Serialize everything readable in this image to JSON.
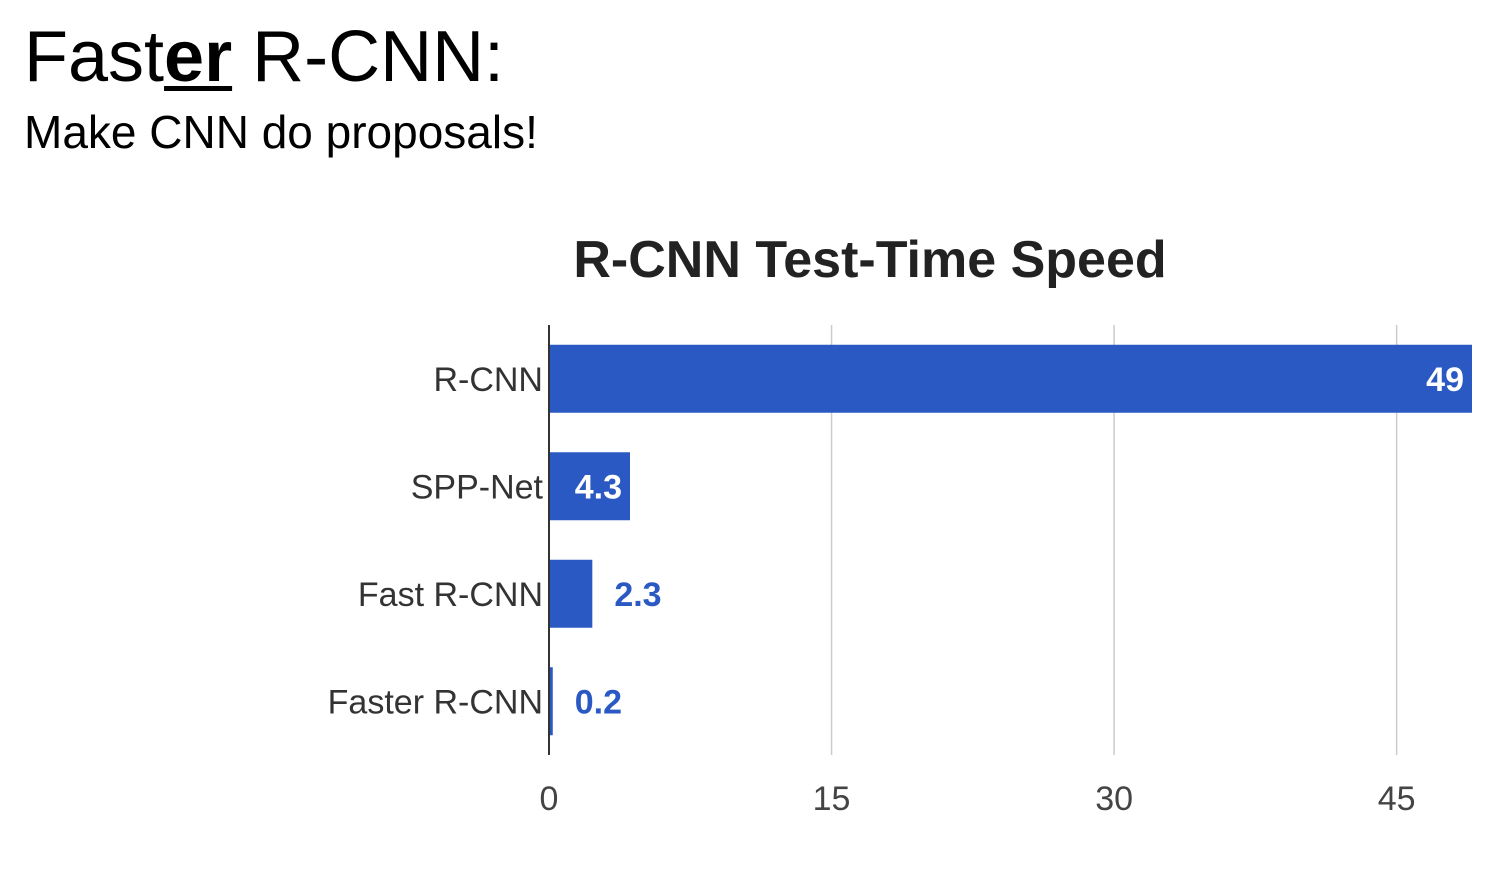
{
  "slide": {
    "title_prefix": "Fast",
    "title_emphasis": "er",
    "title_suffix": " R-CNN:",
    "subtitle": "Make CNN do proposals!"
  },
  "chart_data": {
    "type": "bar",
    "orientation": "horizontal",
    "title": "R-CNN Test-Time Speed",
    "categories": [
      "R-CNN",
      "SPP-Net",
      "Fast R-CNN",
      "Faster R-CNN"
    ],
    "values": [
      49,
      4.3,
      2.3,
      0.2
    ],
    "data_labels": [
      "49",
      "4.3",
      "2.3",
      "0.2"
    ],
    "xticks": [
      0,
      15,
      30,
      45
    ],
    "xlim": [
      0,
      49
    ],
    "xlabel": "",
    "ylabel": "",
    "grid": true,
    "legend": "none",
    "bar_color": "#2b59c3",
    "gridline_color": "#cccccc",
    "axis_color": "#333333"
  }
}
